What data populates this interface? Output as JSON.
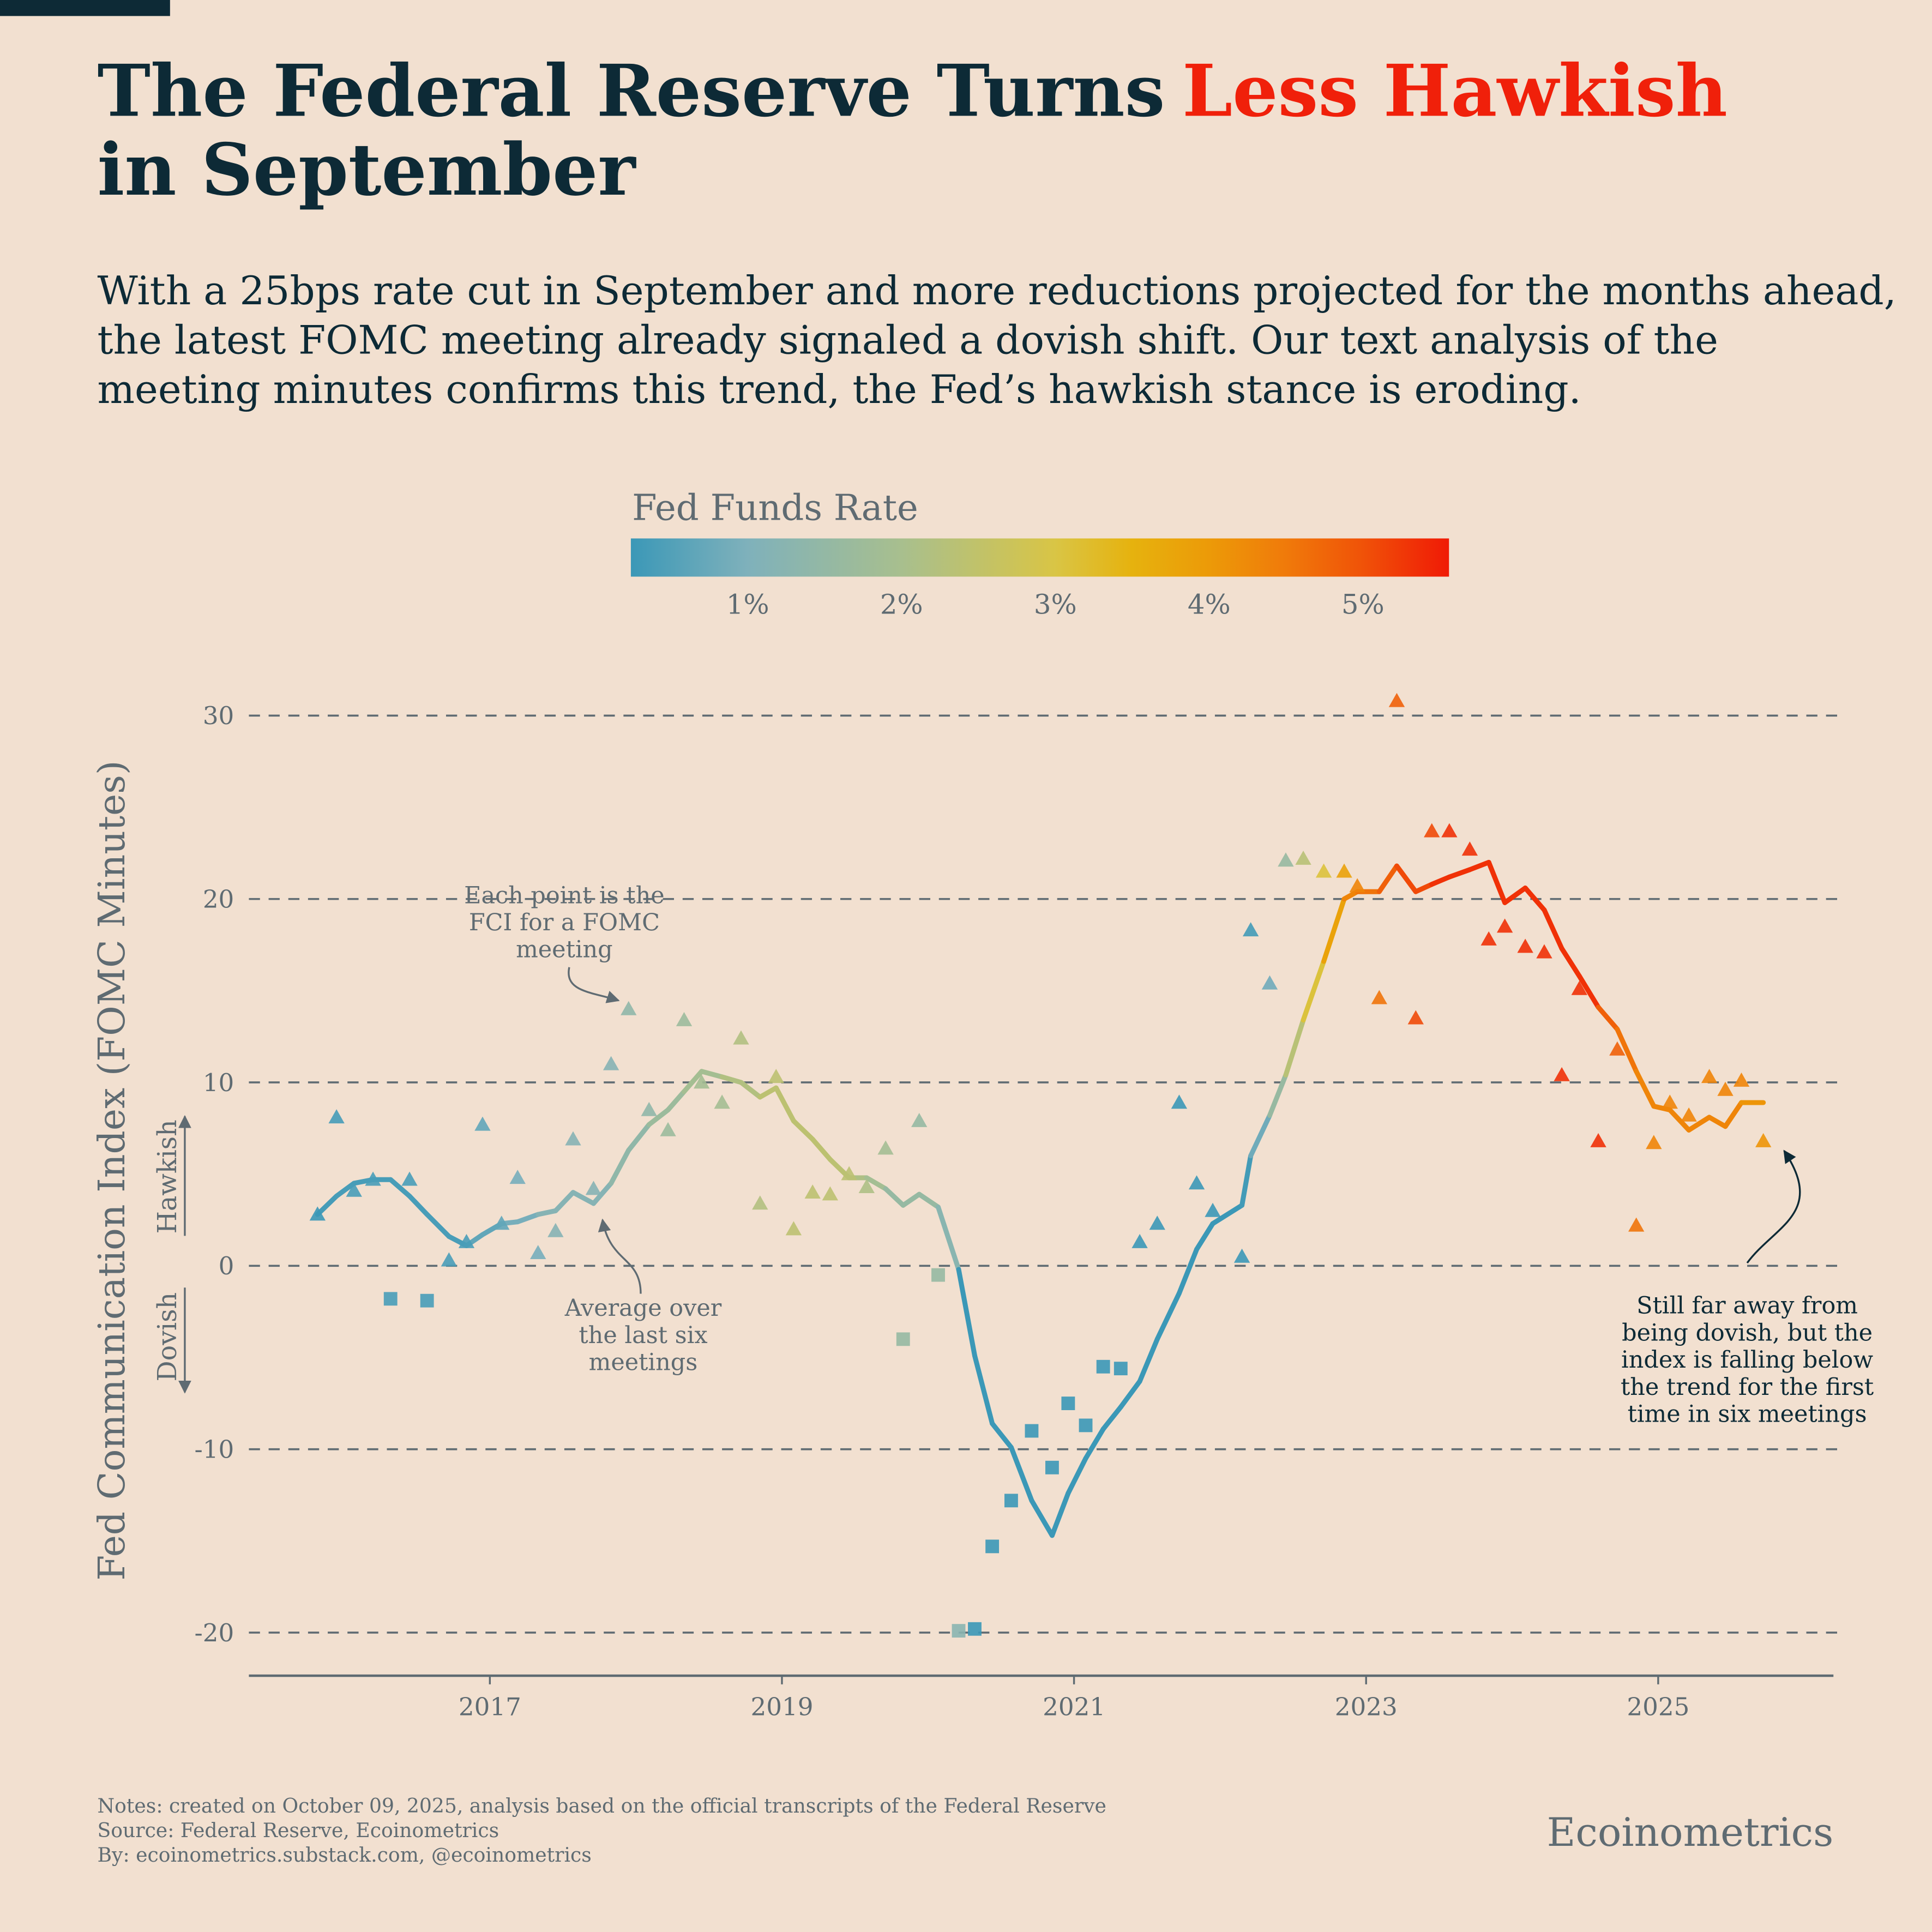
{
  "chart_data": {
    "type": "scatter",
    "title": {
      "part1": "The Federal Reserve Turns",
      "highlight": "Less Hawkish",
      "part2": "in September"
    },
    "subtitle": [
      "With a 25bps rate cut in September and more reductions projected for the months ahead,",
      "the latest FOMC meeting already signaled a dovish shift. Our text analysis of the",
      "meeting minutes confirms this trend, the Fed’s hawkish stance is eroding."
    ],
    "legend_title": "Fed Funds Rate",
    "clim": [
      0.24,
      5.56
    ],
    "cticks": [
      {
        "value": 1,
        "label": "1%"
      },
      {
        "value": 2,
        "label": "2%"
      },
      {
        "value": 3,
        "label": "3%"
      },
      {
        "value": 4,
        "label": "4%"
      },
      {
        "value": 5,
        "label": "5%"
      }
    ],
    "colorscale": [
      [
        0.24,
        "#3b98b7"
      ],
      [
        1,
        "#7fb1bb"
      ],
      [
        2,
        "#a8bf8e"
      ],
      [
        3,
        "#d9c545"
      ],
      [
        3.5,
        "#e6b20e"
      ],
      [
        4,
        "#ec9a08"
      ],
      [
        4.5,
        "#f07a0a"
      ],
      [
        5,
        "#f05208"
      ],
      [
        5.56,
        "#f01a06"
      ]
    ],
    "y_label": "Fed Communication Index (FOMC Minutes)",
    "hawkish_label": "Hawkish",
    "dovish_label": "Dovish",
    "xlim": [
      2015.35,
      2026.2
    ],
    "xticks": [
      2017,
      2019,
      2021,
      2023,
      2025
    ],
    "ylim": [
      -22.35,
      32
    ],
    "yticks": [
      -20,
      -10,
      0,
      10,
      20,
      30
    ],
    "grid": true,
    "x": [
      2015.82,
      2015.95,
      2016.07,
      2016.2,
      2016.32,
      2016.45,
      2016.57,
      2016.72,
      2016.84,
      2016.95,
      2017.08,
      2017.19,
      2017.33,
      2017.45,
      2017.57,
      2017.71,
      2017.83,
      2017.95,
      2018.09,
      2018.22,
      2018.33,
      2018.45,
      2018.59,
      2018.72,
      2018.85,
      2018.96,
      2019.08,
      2019.21,
      2019.33,
      2019.46,
      2019.58,
      2019.71,
      2019.83,
      2019.94,
      2020.07,
      2020.21,
      2020.32,
      2020.44,
      2020.57,
      2020.71,
      2020.85,
      2020.96,
      2021.08,
      2021.2,
      2021.32,
      2021.45,
      2021.57,
      2021.72,
      2021.84,
      2021.95,
      2022.15,
      2022.21,
      2022.34,
      2022.45,
      2022.57,
      2022.71,
      2022.85,
      2022.94,
      2023.09,
      2023.21,
      2023.34,
      2023.45,
      2023.57,
      2023.71,
      2023.84,
      2023.95,
      2024.09,
      2024.22,
      2024.34,
      2024.46,
      2024.59,
      2024.72,
      2024.85,
      2024.97,
      2025.08,
      2025.21,
      2025.35,
      2025.46,
      2025.57,
      2025.72
    ],
    "values": [
      2.8,
      8.1,
      4.1,
      4.7,
      -1.8,
      4.7,
      -1.9,
      0.3,
      1.3,
      7.7,
      2.3,
      4.8,
      0.7,
      1.9,
      6.9,
      4.2,
      11.0,
      14.0,
      8.5,
      7.4,
      13.4,
      10.0,
      8.9,
      12.4,
      3.4,
      10.3,
      2.0,
      4.0,
      3.9,
      5.0,
      4.3,
      6.4,
      -4.0,
      7.9,
      -0.5,
      -19.9,
      -19.8,
      -15.3,
      -12.8,
      -9.0,
      -11.0,
      -7.5,
      -8.7,
      -5.5,
      -5.6,
      1.3,
      2.3,
      8.9,
      4.5,
      3.0,
      0.5,
      18.3,
      15.4,
      22.1,
      22.2,
      21.5,
      21.5,
      20.7,
      14.6,
      30.8,
      13.5,
      23.7,
      23.7,
      22.7,
      17.8,
      18.5,
      17.4,
      17.1,
      10.4,
      15.1,
      6.8,
      11.8,
      2.2,
      6.7,
      8.9,
      8.2,
      10.3,
      9.6,
      10.1,
      6.8
    ],
    "average": [
      2.8,
      3.8,
      4.5,
      4.7,
      4.7,
      3.8,
      2.8,
      1.6,
      1.1,
      1.7,
      2.3,
      2.4,
      2.8,
      3.0,
      4.0,
      3.4,
      4.5,
      6.3,
      7.7,
      8.5,
      9.5,
      10.6,
      10.3,
      10.0,
      9.2,
      9.7,
      7.9,
      6.9,
      5.8,
      4.8,
      4.8,
      4.2,
      3.3,
      3.9,
      3.2,
      -0.2,
      -4.9,
      -8.6,
      -9.9,
      -12.8,
      -14.7,
      -12.4,
      -10.5,
      -8.9,
      -7.7,
      -6.3,
      -4.0,
      -1.5,
      0.9,
      2.3,
      3.3,
      6.0,
      8.2,
      10.4,
      13.4,
      16.6,
      20.0,
      20.4,
      20.4,
      21.8,
      20.4,
      20.8,
      21.2,
      21.6,
      22.0,
      19.8,
      20.6,
      19.4,
      17.3,
      15.8,
      14.1,
      12.9,
      10.6,
      8.7,
      8.5,
      7.4,
      8.1,
      7.6,
      8.9,
      8.9
    ],
    "rates": [
      0.13,
      0.36,
      0.38,
      0.38,
      0.38,
      0.38,
      0.38,
      0.4,
      0.4,
      0.66,
      0.66,
      0.91,
      0.91,
      1.16,
      1.16,
      1.16,
      1.16,
      1.41,
      1.42,
      1.69,
      1.7,
      1.91,
      1.91,
      2.18,
      2.2,
      2.4,
      2.4,
      2.41,
      2.41,
      2.38,
      2.13,
      1.9,
      1.55,
      1.55,
      1.55,
      1.25,
      0.08,
      0.09,
      0.09,
      0.09,
      0.09,
      0.09,
      0.08,
      0.08,
      0.08,
      0.08,
      0.08,
      0.08,
      0.08,
      0.08,
      0.08,
      0.33,
      0.83,
      1.58,
      2.33,
      3.08,
      3.83,
      4.33,
      4.58,
      4.83,
      5.08,
      5.08,
      5.33,
      5.33,
      5.33,
      5.33,
      5.33,
      5.33,
      5.33,
      5.33,
      5.33,
      4.83,
      4.58,
      4.33,
      4.33,
      4.33,
      4.33,
      4.33,
      4.33,
      4.08
    ],
    "annotations": {
      "points_note": [
        "Each point is the",
        "FCI for a FOMC",
        "meeting"
      ],
      "average_note": [
        "Average over",
        "the last six",
        "meetings"
      ],
      "latest_note": [
        "Still far away from",
        "being dovish, but the",
        "index is falling below",
        "the trend for the first",
        "time in six meetings"
      ]
    },
    "notes": [
      "Notes: created on October 09, 2025, analysis based on the official transcripts of the Federal Reserve",
      "Source: Federal Reserve, Ecoinometrics",
      "By: ecoinometrics.substack.com, @ecoinometrics"
    ],
    "brand": "Ecoinometrics"
  }
}
